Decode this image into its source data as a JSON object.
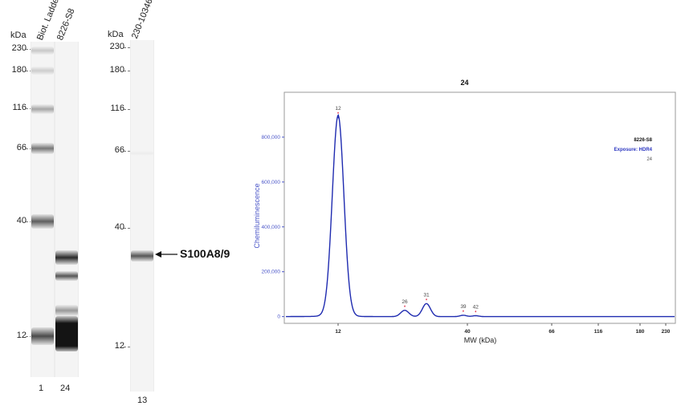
{
  "gel1": {
    "kda_label": "kDa",
    "ladder_ticks": [
      "230",
      "180",
      "116",
      "66",
      "40",
      "12"
    ],
    "lane_headers": [
      "Biot. Ladder",
      "8226-S8"
    ],
    "lane_numbers": [
      "1",
      "24"
    ]
  },
  "gel2": {
    "kda_label": "kDa",
    "ladder_ticks": [
      "230",
      "180",
      "116",
      "66",
      "40",
      "12"
    ],
    "lane_header": "230-10346",
    "lane_number": "13",
    "annotation": "S100A8/9"
  },
  "chart_data": {
    "type": "line",
    "title": "24",
    "xlabel": "MW (kDa)",
    "ylabel": "Chemiluminescence",
    "x_ticks": [
      12,
      40,
      66,
      116,
      180,
      230
    ],
    "y_ticks": [
      "0",
      "200,000",
      "400,000",
      "600,000",
      "800,000"
    ],
    "y_tick_values": [
      0,
      200000,
      400000,
      600000,
      800000
    ],
    "ylim": [
      -30000,
      1000000
    ],
    "legend": {
      "sample": "8226-S8",
      "exposure": "Exposure: HDR4",
      "lane": "24"
    },
    "peaks": [
      {
        "label": "12",
        "mw": 12,
        "y": 890000
      },
      {
        "label": "26",
        "mw": 26,
        "y": 28000
      },
      {
        "label": "31",
        "mw": 31,
        "y": 58000
      },
      {
        "label": "39",
        "mw": 39,
        "y": 6000
      },
      {
        "label": "42",
        "mw": 42,
        "y": 4000
      }
    ],
    "colors": {
      "line": "#1f2bb0",
      "peak_marker": "#e0304a",
      "axis_text": "#4a55c8"
    }
  }
}
